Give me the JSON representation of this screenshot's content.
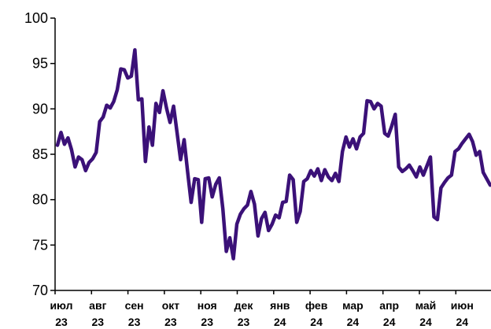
{
  "chart_data": {
    "type": "line",
    "title": "",
    "xlabel": "",
    "ylabel": "",
    "ylim": [
      70,
      100
    ],
    "yticks": [
      70,
      75,
      80,
      85,
      90,
      95,
      100
    ],
    "grid": false,
    "legend": "none",
    "line_color": "#3b1178",
    "month_labels": [
      {
        "month": "июл",
        "year": "23"
      },
      {
        "month": "авг",
        "year": "23"
      },
      {
        "month": "сен",
        "year": "23"
      },
      {
        "month": "окт",
        "year": "23"
      },
      {
        "month": "ноя",
        "year": "23"
      },
      {
        "month": "дек",
        "year": "23"
      },
      {
        "month": "янв",
        "year": "24"
      },
      {
        "month": "фев",
        "year": "24"
      },
      {
        "month": "мар",
        "year": "24"
      },
      {
        "month": "апр",
        "year": "24"
      },
      {
        "month": "май",
        "year": "24"
      },
      {
        "month": "июн",
        "year": "24"
      }
    ],
    "series": [
      {
        "values": [
          86.0,
          87.4,
          86.1,
          86.8,
          85.5,
          83.6,
          84.7,
          84.4,
          83.2,
          84.1,
          84.5,
          85.2,
          88.6,
          89.1,
          90.4,
          90.1,
          90.8,
          92.1,
          94.4,
          94.3,
          93.4,
          93.6,
          96.5,
          91.0,
          91.1,
          84.2,
          88.0,
          86.0,
          90.6,
          89.6,
          92.0,
          90.1,
          88.5,
          90.3,
          87.4,
          84.4,
          86.6,
          83.1,
          79.7,
          82.3,
          82.2,
          77.5,
          82.3,
          82.4,
          80.3,
          81.7,
          82.4,
          79.0,
          74.3,
          75.8,
          73.5,
          77.3,
          78.4,
          79.0,
          79.4,
          80.9,
          79.5,
          76.0,
          77.9,
          78.6,
          76.6,
          77.3,
          78.3,
          78.0,
          79.7,
          79.8,
          82.7,
          82.2,
          77.5,
          78.7,
          82.0,
          82.3,
          83.2,
          82.6,
          83.4,
          82.1,
          83.3,
          82.5,
          82.1,
          82.9,
          82.0,
          85.3,
          86.9,
          85.8,
          86.7,
          85.6,
          86.9,
          87.3,
          90.9,
          90.8,
          90.0,
          90.6,
          90.3,
          87.3,
          87.0,
          88.1,
          89.4,
          83.6,
          83.1,
          83.4,
          83.8,
          83.2,
          82.5,
          83.6,
          82.7,
          83.7,
          84.7,
          78.1,
          77.8,
          81.3,
          81.9,
          82.4,
          82.7,
          85.3,
          85.6,
          86.2,
          86.7,
          87.2,
          86.4,
          84.9,
          85.3,
          83.0,
          82.3,
          81.6
        ]
      }
    ]
  }
}
